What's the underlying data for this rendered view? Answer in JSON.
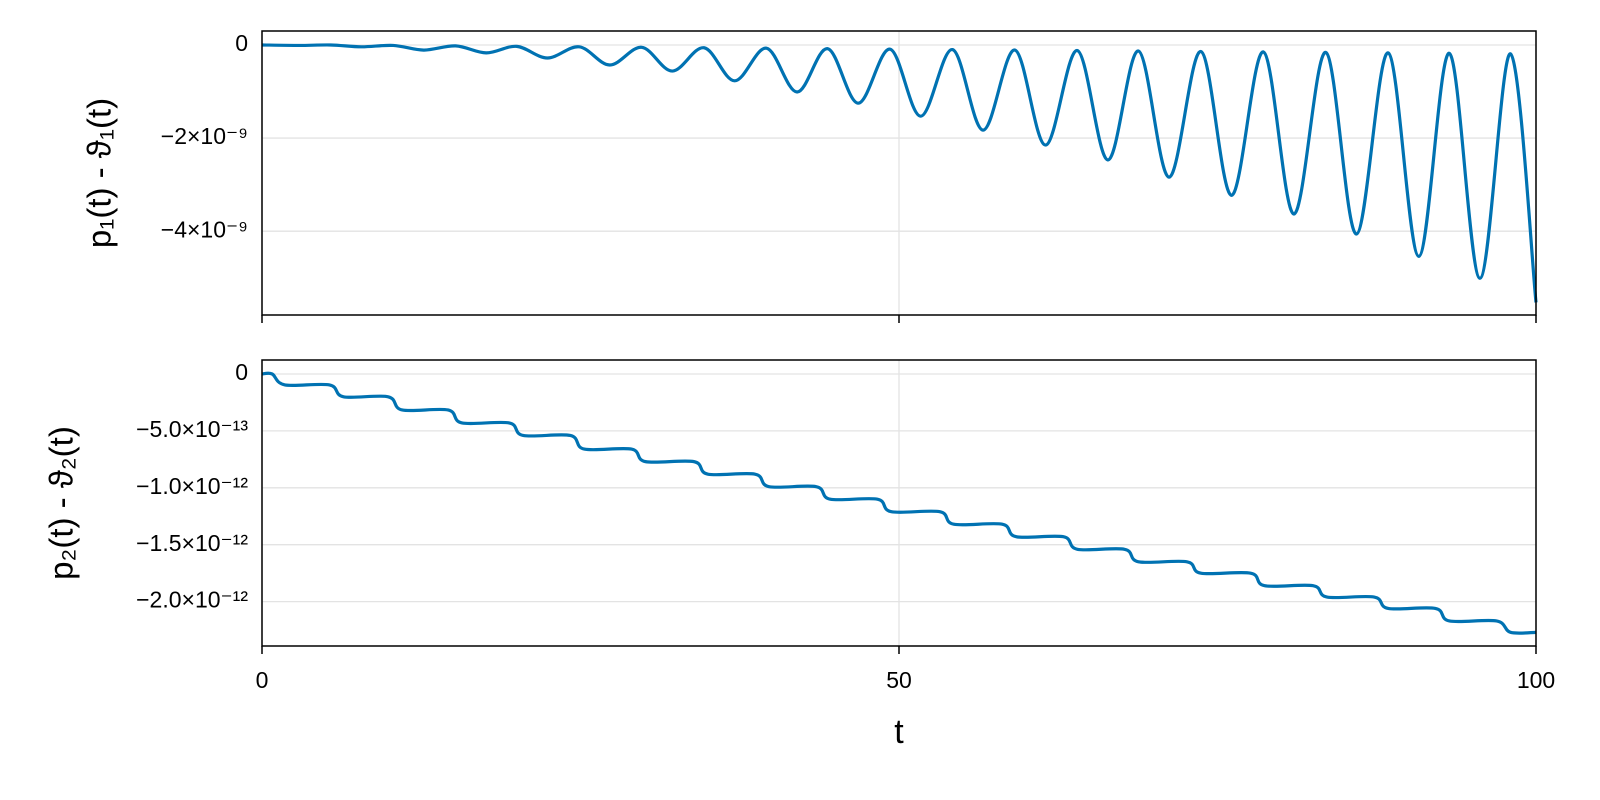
{
  "chart_data": [
    {
      "type": "line",
      "y_label": "p₁(t) - ϑ₁(t)",
      "x": [
        0,
        2.9,
        5.4,
        7.8,
        10.3,
        12.7,
        15.2,
        17.6,
        20.0,
        22.4,
        24.9,
        27.3,
        29.8,
        32.2,
        34.7,
        37.1,
        39.6,
        42.0,
        44.4,
        46.8,
        49.3,
        51.7,
        54.2,
        56.6,
        59.1,
        61.5,
        64.0,
        66.4,
        68.8,
        71.2,
        73.7,
        76.1,
        78.6,
        81.0,
        83.5,
        85.9,
        88.4,
        90.8,
        93.2,
        95.6,
        98.0,
        100
      ],
      "values": [
        0,
        -1e-11,
        0,
        -4e-11,
        -1e-11,
        -1.1e-10,
        -2e-11,
        -1.7e-10,
        -3e-11,
        -2.8e-10,
        -4e-11,
        -4.3e-10,
        -5e-11,
        -5.6e-10,
        -6e-11,
        -7.7e-10,
        -7e-11,
        -1.01e-09,
        -8e-11,
        -1.25e-09,
        -9e-11,
        -1.53e-09,
        -1e-10,
        -1.83e-09,
        -1.1e-10,
        -2.15e-09,
        -1.2e-10,
        -2.47e-09,
        -1.3e-10,
        -2.84e-09,
        -1.4e-10,
        -3.23e-09,
        -1.5e-10,
        -3.63e-09,
        -1.6e-10,
        -4.06e-09,
        -1.7e-10,
        -4.54e-09,
        -1.8e-10,
        -5.01e-09,
        -1.9e-10,
        -5.53e-09
      ],
      "color": "#0072b2",
      "xlim": [
        0,
        100
      ],
      "xticks": [
        0,
        50,
        100
      ],
      "x_tick_labels": false,
      "ylim": [
        -5.8e-09,
        3e-10
      ],
      "yticks": [
        0,
        {
          "value": -2e-09,
          "label": "−2×10⁻⁹"
        },
        {
          "value": -4e-09,
          "label": "−4×10⁻⁹"
        }
      ],
      "grid": true
    },
    {
      "type": "line",
      "y_label": "p₂(t) - ϑ₂(t)",
      "x_label": "t",
      "x": [
        0,
        0.8,
        1.8,
        5.3,
        6.4,
        9.9,
        11.0,
        14.6,
        15.7,
        19.4,
        20.5,
        24.2,
        25.3,
        29.0,
        30.1,
        33.9,
        35.0,
        38.7,
        39.8,
        43.5,
        44.6,
        48.3,
        49.4,
        53.2,
        54.3,
        58.1,
        59.2,
        62.9,
        64.0,
        67.7,
        68.8,
        72.6,
        73.7,
        77.6,
        78.7,
        82.5,
        83.6,
        87.3,
        88.4,
        92.1,
        93.2,
        96.9,
        98.0,
        100
      ],
      "values": [
        0,
        0,
        -9.6e-14,
        -9.6e-14,
        -2e-13,
        -2e-13,
        -3.16e-13,
        -3.16e-13,
        -4.3e-13,
        -4.3e-13,
        -5.4e-13,
        -5.4e-13,
        -6.6e-13,
        -6.6e-13,
        -7.7e-13,
        -7.7e-13,
        -8.8e-13,
        -8.8e-13,
        -9.9e-13,
        -9.9e-13,
        -1.1e-12,
        -1.1e-12,
        -1.21e-12,
        -1.21e-12,
        -1.32e-12,
        -1.32e-12,
        -1.43e-12,
        -1.43e-12,
        -1.54e-12,
        -1.54e-12,
        -1.65e-12,
        -1.65e-12,
        -1.75e-12,
        -1.75e-12,
        -1.86e-12,
        -1.86e-12,
        -1.96e-12,
        -1.96e-12,
        -2.06e-12,
        -2.06e-12,
        -2.17e-12,
        -2.17e-12,
        -2.27e-12,
        -2.27e-12
      ],
      "color": "#0072b2",
      "xlim": [
        0,
        100
      ],
      "xticks": [
        0,
        50,
        100
      ],
      "x_tick_labels": true,
      "ylim": [
        -2.39e-12,
        1.23e-13
      ],
      "yticks": [
        0,
        {
          "value": -5e-13,
          "label": "−5.0×10⁻¹³"
        },
        {
          "value": -1e-12,
          "label": "−1.0×10⁻¹²"
        },
        {
          "value": -1.5e-12,
          "label": "−1.5×10⁻¹²"
        },
        {
          "value": -2e-12,
          "label": "−2.0×10⁻¹²"
        }
      ],
      "grid": true
    }
  ]
}
